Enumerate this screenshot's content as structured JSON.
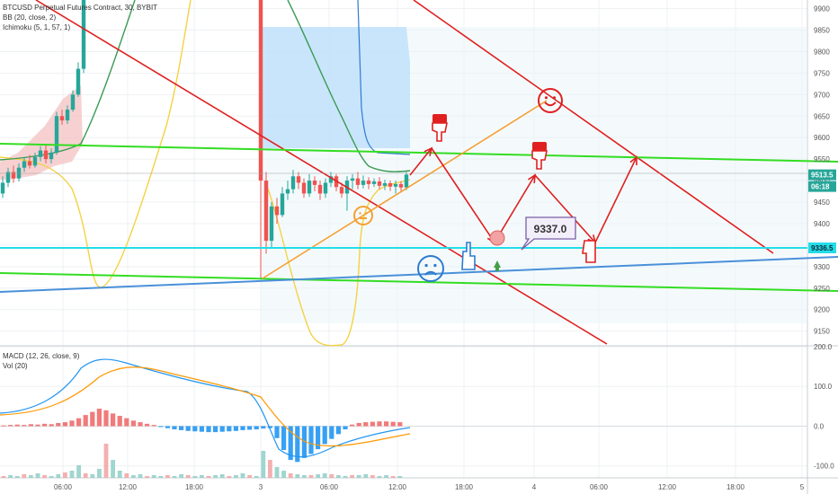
{
  "header": {
    "symbol_line": "BTCUSD Perpetual Futures Contract, 30, BYBIT",
    "bb_line": "BB (20, close, 2)",
    "ichimoku_line": "Ichimoku (5, 1, 57, 1)"
  },
  "lower_pane": {
    "macd_line": "MACD (12, 26, close, 9)",
    "vol_line": "Vol (20)"
  },
  "annotation": {
    "callout_value": "9337.0"
  },
  "price_tags": {
    "last_price": "9513.5",
    "countdown": "06:18",
    "cyan_level": "9336.5"
  },
  "colors": {
    "bull": "#26a69a",
    "bear": "#ef5350",
    "red_line": "#e02020",
    "green_line": "#33dd22",
    "blue_line": "#4a90d9",
    "orange_line": "#f5a033",
    "cyan_line": "#22dde8",
    "bb_band": "#f5d142",
    "kumo": "#f5c6c6",
    "position_box": "#bbdefb",
    "macd_line": "#2196f3",
    "signal_line": "#ff9800"
  },
  "icons": [
    "smile-face-icon",
    "neutral-face-icon",
    "sad-face-icon",
    "hand-pointing-down-icon",
    "hand-pointing-up-icon",
    "arrow-up-icon"
  ],
  "chart_data": [
    {
      "type": "candlestick",
      "title": "BTCUSD Perpetual Futures Contract, 30, BYBIT",
      "ylim": [
        9120,
        9920
      ],
      "y_ticks": [
        9900,
        9850,
        9800,
        9750,
        9700,
        9650,
        9600,
        9550,
        9500,
        9450,
        9400,
        9350,
        9300,
        9250,
        9200,
        9150
      ],
      "x_ticks": [
        "06:00",
        "12:00",
        "18:00",
        "3",
        "06:00",
        "12:00",
        "18:00",
        "4",
        "06:00",
        "12:00",
        "18:00",
        "5"
      ],
      "last_price": 9513.5,
      "horizontal_level": 9336.5,
      "annotation_value": 9337.0,
      "grid": true,
      "price_axis": "right"
    },
    {
      "type": "macd",
      "title": "MACD (12, 26, close, 9)",
      "ylim": [
        -130,
        200
      ],
      "y_ticks": [
        200.0,
        100.0,
        0.0,
        -100.0
      ],
      "y_tick_labels": [
        "200.0",
        "100.0",
        "0.0",
        "-100.0"
      ],
      "histogram_sign_sequence": [
        "+",
        "+",
        "+",
        "-",
        "-",
        "+"
      ],
      "series": [
        {
          "name": "MACD"
        },
        {
          "name": "Signal"
        }
      ]
    }
  ]
}
